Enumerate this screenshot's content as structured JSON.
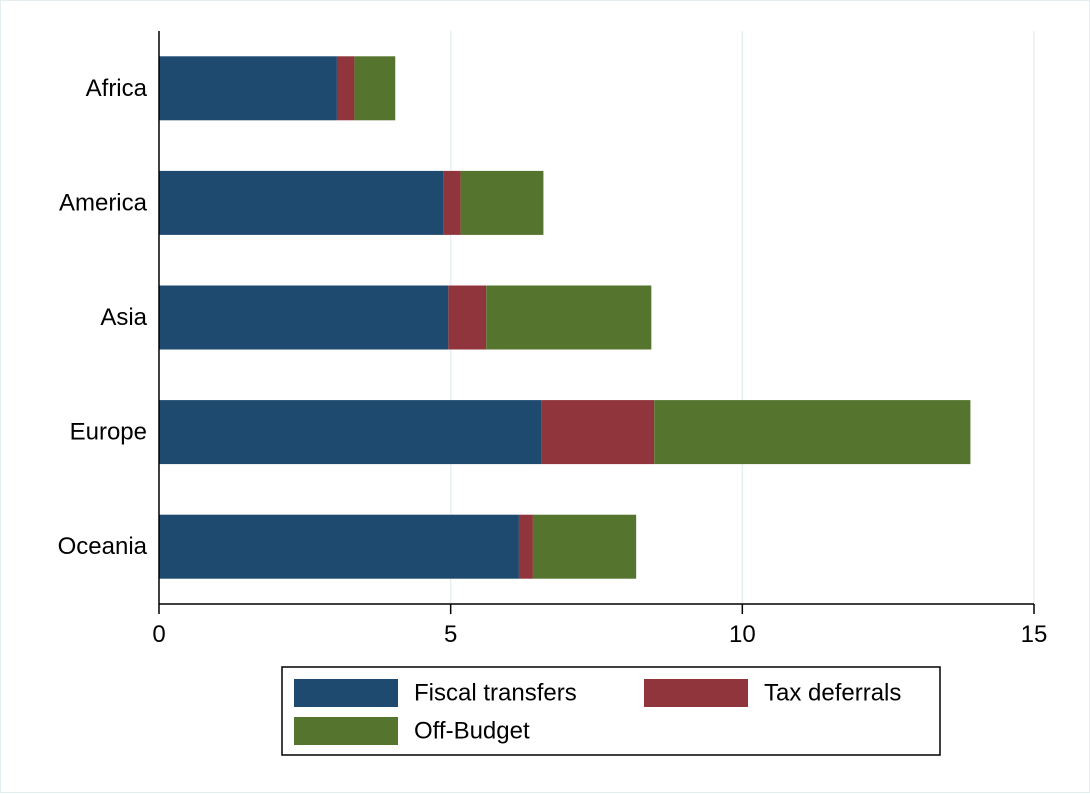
{
  "chart_data": {
    "type": "bar",
    "orientation": "horizontal",
    "stacked": true,
    "categories": [
      "Africa",
      "America",
      "Asia",
      "Europe",
      "Oceania"
    ],
    "series": [
      {
        "name": "Fiscal transfers",
        "color": "#1f4a70",
        "values": [
          3.05,
          4.87,
          4.96,
          6.56,
          6.17
        ]
      },
      {
        "name": "Tax deferrals",
        "color": "#90353b",
        "values": [
          0.3,
          0.3,
          0.65,
          1.93,
          0.24
        ]
      },
      {
        "name": "Off-Budget",
        "color": "#55752f",
        "values": [
          0.7,
          1.42,
          2.83,
          5.42,
          1.77
        ]
      }
    ],
    "xlim": [
      0,
      15
    ],
    "xticks": [
      0,
      5,
      10,
      15
    ],
    "grid": "vertical",
    "legend_position": "bottom"
  }
}
